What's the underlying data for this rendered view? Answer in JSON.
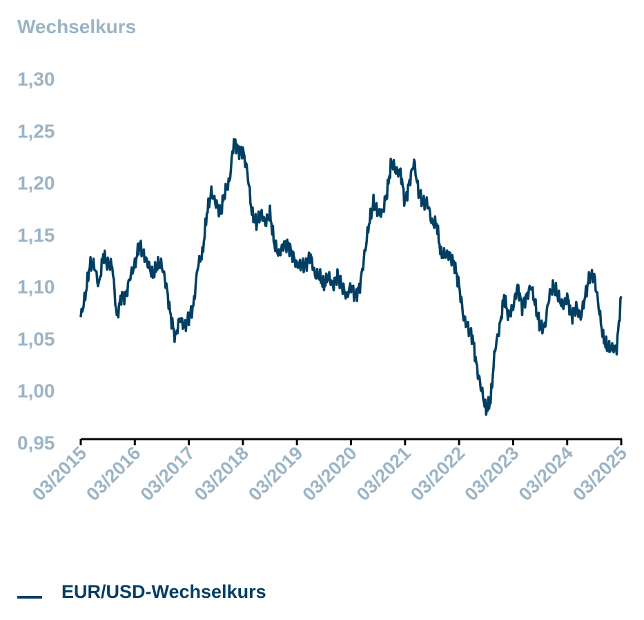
{
  "chart_data": {
    "type": "line",
    "title": "",
    "ylabel": "Wechselkurs",
    "xlabel": "",
    "ylim": [
      0.95,
      1.3
    ],
    "yticks": [
      1.3,
      1.25,
      1.2,
      1.15,
      1.1,
      1.05,
      1.0,
      0.95
    ],
    "ytick_labels": [
      "1,30",
      "1,25",
      "1,20",
      "1,15",
      "1,10",
      "1,05",
      "1,00",
      "0,95"
    ],
    "xtick_labels": [
      "03/2015",
      "03/2016",
      "03/2017",
      "03/2018",
      "03/2019",
      "03/2020",
      "03/2021",
      "03/2022",
      "03/2023",
      "03/2024",
      "03/2025"
    ],
    "x_start": "03/2015",
    "x_step": "1 month",
    "grid": false,
    "legend_position": "bottom-left",
    "series": [
      {
        "name": "EUR/USD-Wechselkurs",
        "color": "#003f63",
        "values": [
          1.07,
          1.09,
          1.12,
          1.12,
          1.1,
          1.13,
          1.12,
          1.12,
          1.07,
          1.09,
          1.09,
          1.11,
          1.12,
          1.14,
          1.13,
          1.12,
          1.11,
          1.12,
          1.12,
          1.1,
          1.07,
          1.05,
          1.07,
          1.06,
          1.07,
          1.08,
          1.12,
          1.13,
          1.17,
          1.19,
          1.18,
          1.17,
          1.19,
          1.2,
          1.24,
          1.23,
          1.23,
          1.21,
          1.17,
          1.16,
          1.17,
          1.16,
          1.17,
          1.14,
          1.13,
          1.14,
          1.14,
          1.13,
          1.12,
          1.12,
          1.12,
          1.13,
          1.11,
          1.11,
          1.1,
          1.11,
          1.1,
          1.11,
          1.1,
          1.09,
          1.1,
          1.09,
          1.1,
          1.13,
          1.16,
          1.18,
          1.17,
          1.17,
          1.19,
          1.22,
          1.21,
          1.21,
          1.18,
          1.2,
          1.22,
          1.19,
          1.18,
          1.18,
          1.16,
          1.16,
          1.13,
          1.13,
          1.13,
          1.12,
          1.1,
          1.07,
          1.06,
          1.05,
          1.02,
          1.0,
          0.98,
          0.99,
          1.04,
          1.06,
          1.09,
          1.07,
          1.08,
          1.1,
          1.08,
          1.09,
          1.1,
          1.08,
          1.06,
          1.06,
          1.09,
          1.1,
          1.09,
          1.08,
          1.09,
          1.07,
          1.08,
          1.07,
          1.09,
          1.11,
          1.11,
          1.08,
          1.05,
          1.04,
          1.04,
          1.04,
          1.09
        ]
      }
    ]
  }
}
